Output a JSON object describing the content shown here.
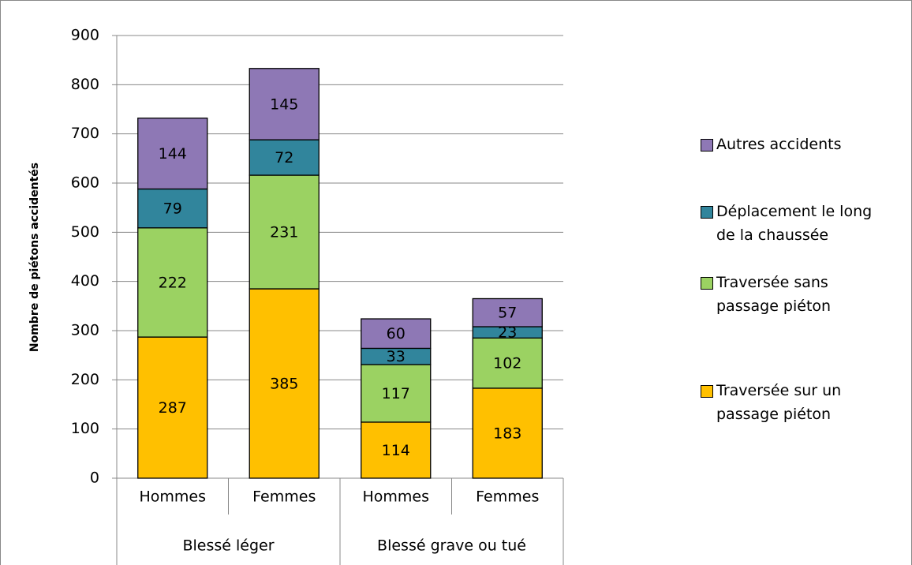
{
  "chart_data": {
    "type": "stacked_bar",
    "y_label": "Nombre de piétons accidentés",
    "categories": [
      "Hommes",
      "Femmes",
      "Hommes",
      "Femmes"
    ],
    "groups": [
      {
        "name": "Blessé léger",
        "size": 2
      },
      {
        "name": "Blessé grave ou tué",
        "size": 2
      }
    ],
    "series": [
      {
        "name": "Traversée sur un passage piéton",
        "color": "#FFC000",
        "values": [
          287,
          385,
          114,
          183
        ]
      },
      {
        "name": "Traversée sans passage piéton",
        "color": "#9BD262",
        "values": [
          222,
          231,
          117,
          102
        ]
      },
      {
        "name": "Déplacement le long de la chaussée",
        "color": "#31859C",
        "values": [
          79,
          72,
          33,
          23
        ]
      },
      {
        "name": "Autres accidents",
        "color": "#8E78B5",
        "values": [
          144,
          145,
          60,
          57
        ]
      }
    ],
    "ylim": [
      0,
      900
    ],
    "yticks": [
      0,
      100,
      200,
      300,
      400,
      500,
      600,
      700,
      800,
      900
    ],
    "grid": true,
    "legend": "right"
  }
}
